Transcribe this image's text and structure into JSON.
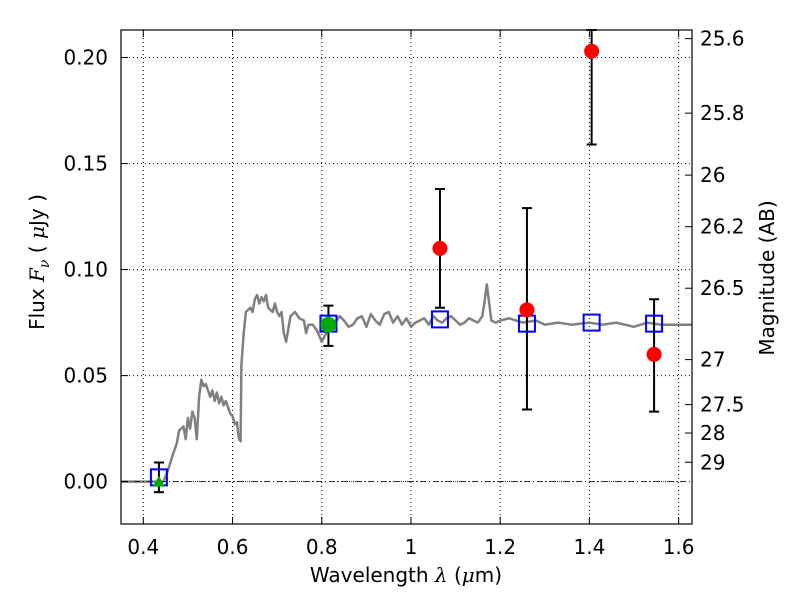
{
  "chart_data": {
    "type": "scatter",
    "xlabel": {
      "prefix": "Wavelength  ",
      "symbol": "λ",
      "suffix": " (",
      "unit_symbol": "μ",
      "unit_rest": "m)"
    },
    "ylabel": {
      "prefix": "Flux  ",
      "symbol": "F",
      "subscript": "ν",
      "mid": "  (  ",
      "unit_symbol": "μ",
      "unit_rest": "Jy  )"
    },
    "y2label": "Magnitude (AB)",
    "xlim": [
      0.35,
      1.63
    ],
    "ylim": [
      -0.02,
      0.213
    ],
    "grid": true,
    "xticks": [
      {
        "v": 0.4,
        "label": "0.4"
      },
      {
        "v": 0.6,
        "label": "0.6"
      },
      {
        "v": 0.8,
        "label": "0.8"
      },
      {
        "v": 1.0,
        "label": "1"
      },
      {
        "v": 1.2,
        "label": "1.2"
      },
      {
        "v": 1.4,
        "label": "1.4"
      },
      {
        "v": 1.6,
        "label": "1.6"
      }
    ],
    "yticks": [
      {
        "v": 0.0,
        "label": "0.00"
      },
      {
        "v": 0.05,
        "label": "0.05"
      },
      {
        "v": 0.1,
        "label": "0.10"
      },
      {
        "v": 0.15,
        "label": "0.15"
      },
      {
        "v": 0.2,
        "label": "0.20"
      }
    ],
    "y2ticks": [
      {
        "mag": 25.6,
        "label": "25.6"
      },
      {
        "mag": 25.8,
        "label": "25.8"
      },
      {
        "mag": 26.0,
        "label": "26"
      },
      {
        "mag": 26.2,
        "label": "26.2"
      },
      {
        "mag": 26.5,
        "label": "26.5"
      },
      {
        "mag": 27.0,
        "label": "27"
      },
      {
        "mag": 27.5,
        "label": "27.5"
      },
      {
        "mag": 28.0,
        "label": "28"
      },
      {
        "mag": 29.0,
        "label": "29"
      }
    ],
    "model_spectrum": {
      "color": "#808080",
      "x": [
        0.35,
        0.4,
        0.43,
        0.445,
        0.455,
        0.465,
        0.475,
        0.48,
        0.49,
        0.495,
        0.5,
        0.505,
        0.51,
        0.515,
        0.52,
        0.525,
        0.53,
        0.535,
        0.54,
        0.55,
        0.555,
        0.56,
        0.565,
        0.57,
        0.575,
        0.58,
        0.585,
        0.59,
        0.595,
        0.6,
        0.605,
        0.61,
        0.613,
        0.615,
        0.618,
        0.62,
        0.625,
        0.63,
        0.635,
        0.64,
        0.645,
        0.65,
        0.655,
        0.66,
        0.665,
        0.67,
        0.675,
        0.68,
        0.685,
        0.69,
        0.695,
        0.7,
        0.705,
        0.71,
        0.715,
        0.72,
        0.73,
        0.74,
        0.75,
        0.76,
        0.765,
        0.77,
        0.78,
        0.79,
        0.8,
        0.81,
        0.82,
        0.83,
        0.84,
        0.85,
        0.86,
        0.87,
        0.88,
        0.89,
        0.9,
        0.91,
        0.92,
        0.93,
        0.94,
        0.95,
        0.96,
        0.97,
        0.98,
        0.99,
        1.0,
        1.01,
        1.02,
        1.03,
        1.04,
        1.05,
        1.06,
        1.07,
        1.08,
        1.09,
        1.1,
        1.11,
        1.12,
        1.13,
        1.14,
        1.15,
        1.16,
        1.165,
        1.17,
        1.175,
        1.18,
        1.19,
        1.2,
        1.22,
        1.25,
        1.28,
        1.3,
        1.33,
        1.36,
        1.4,
        1.43,
        1.46,
        1.5,
        1.53,
        1.56,
        1.59,
        1.62,
        1.63
      ],
      "y": [
        0.0,
        0.0,
        0.0,
        0.0,
        0.005,
        0.012,
        0.018,
        0.024,
        0.026,
        0.02,
        0.03,
        0.025,
        0.033,
        0.03,
        0.02,
        0.04,
        0.048,
        0.045,
        0.046,
        0.04,
        0.043,
        0.038,
        0.042,
        0.037,
        0.04,
        0.036,
        0.038,
        0.035,
        0.032,
        0.031,
        0.027,
        0.028,
        0.022,
        0.02,
        0.019,
        0.055,
        0.07,
        0.08,
        0.081,
        0.082,
        0.08,
        0.086,
        0.088,
        0.084,
        0.087,
        0.085,
        0.088,
        0.082,
        0.081,
        0.08,
        0.084,
        0.08,
        0.078,
        0.08,
        0.07,
        0.066,
        0.078,
        0.08,
        0.077,
        0.076,
        0.07,
        0.074,
        0.074,
        0.071,
        0.066,
        0.07,
        0.072,
        0.075,
        0.078,
        0.076,
        0.073,
        0.074,
        0.077,
        0.078,
        0.073,
        0.079,
        0.076,
        0.074,
        0.079,
        0.08,
        0.075,
        0.078,
        0.074,
        0.077,
        0.073,
        0.075,
        0.076,
        0.077,
        0.074,
        0.078,
        0.076,
        0.075,
        0.077,
        0.078,
        0.076,
        0.074,
        0.075,
        0.077,
        0.076,
        0.075,
        0.078,
        0.085,
        0.093,
        0.085,
        0.076,
        0.075,
        0.076,
        0.077,
        0.075,
        0.076,
        0.074,
        0.075,
        0.074,
        0.075,
        0.074,
        0.075,
        0.073,
        0.075,
        0.074,
        0.074,
        0.074,
        0.074
      ]
    },
    "model_points": {
      "color": "#0000ff",
      "x": [
        0.435,
        0.815,
        1.065,
        1.26,
        1.405,
        1.545
      ],
      "y": [
        0.002,
        0.0745,
        0.0765,
        0.0745,
        0.075,
        0.0745
      ]
    },
    "detections": {
      "color": "#ff0000",
      "points": [
        {
          "x": 1.065,
          "y": 0.11,
          "err_low": 0.082,
          "err_high": 0.138
        },
        {
          "x": 1.26,
          "y": 0.081,
          "err_low": 0.034,
          "err_high": 0.129
        },
        {
          "x": 1.405,
          "y": 0.203,
          "err_low": 0.159,
          "err_high": 0.213
        },
        {
          "x": 1.545,
          "y": 0.06,
          "err_low": 0.033,
          "err_high": 0.086
        }
      ]
    },
    "optical_points": {
      "color": "#00aa00",
      "points": [
        {
          "x": 0.815,
          "y": 0.074,
          "err_low": 0.064,
          "err_high": 0.083
        },
        {
          "x": 0.435,
          "y": 0.0,
          "err_low": -0.005,
          "err_high": 0.009
        }
      ]
    }
  }
}
